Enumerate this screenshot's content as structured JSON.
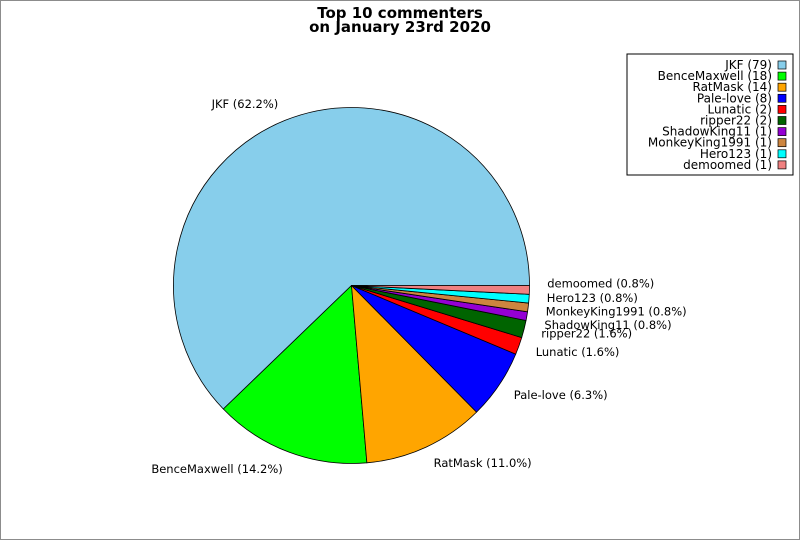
{
  "chart_data": {
    "type": "pie",
    "title_lines": [
      "Top 10 commenters",
      "on January 23rd 2020"
    ],
    "legend_position": "top-right",
    "slices": [
      {
        "name": "JKF",
        "count": 79,
        "percent": "62.2%",
        "color": "#87ceeb",
        "legend": "JKF (79)",
        "label": "JKF (62.2%)"
      },
      {
        "name": "BenceMaxwell",
        "count": 18,
        "percent": "14.2%",
        "color": "#00ff00",
        "legend": "BenceMaxwell (18)",
        "label": "BenceMaxwell (14.2%)"
      },
      {
        "name": "RatMask",
        "count": 14,
        "percent": "11.0%",
        "color": "#ffa500",
        "legend": "RatMask (14)",
        "label": "RatMask (11.0%)"
      },
      {
        "name": "Pale-love",
        "count": 8,
        "percent": "6.3%",
        "color": "#0000ff",
        "legend": "Pale-love (8)",
        "label": "Pale-love (6.3%)"
      },
      {
        "name": "Lunatic",
        "count": 2,
        "percent": "1.6%",
        "color": "#ff0000",
        "legend": "Lunatic (2)",
        "label": "Lunatic (1.6%)"
      },
      {
        "name": "ripper22",
        "count": 2,
        "percent": "1.6%",
        "color": "#006400",
        "legend": "ripper22 (2)",
        "label": "ripper22 (1.6%)"
      },
      {
        "name": "ShadowKing11",
        "count": 1,
        "percent": "0.8%",
        "color": "#9400d3",
        "legend": "ShadowKing11 (1)",
        "label": "ShadowKing11 (0.8%)"
      },
      {
        "name": "MonkeyKing1991",
        "count": 1,
        "percent": "0.8%",
        "color": "#cd853f",
        "legend": "MonkeyKing1991 (1)",
        "label": "MonkeyKing1991 (0.8%)"
      },
      {
        "name": "Hero123",
        "count": 1,
        "percent": "0.8%",
        "color": "#00ffff",
        "legend": "Hero123 (1)",
        "label": "Hero123 (0.8%)"
      },
      {
        "name": "demoomed",
        "count": 1,
        "percent": "0.8%",
        "color": "#f08080",
        "legend": "demoomed (1)",
        "label": "demoomed (0.8%)"
      }
    ]
  }
}
